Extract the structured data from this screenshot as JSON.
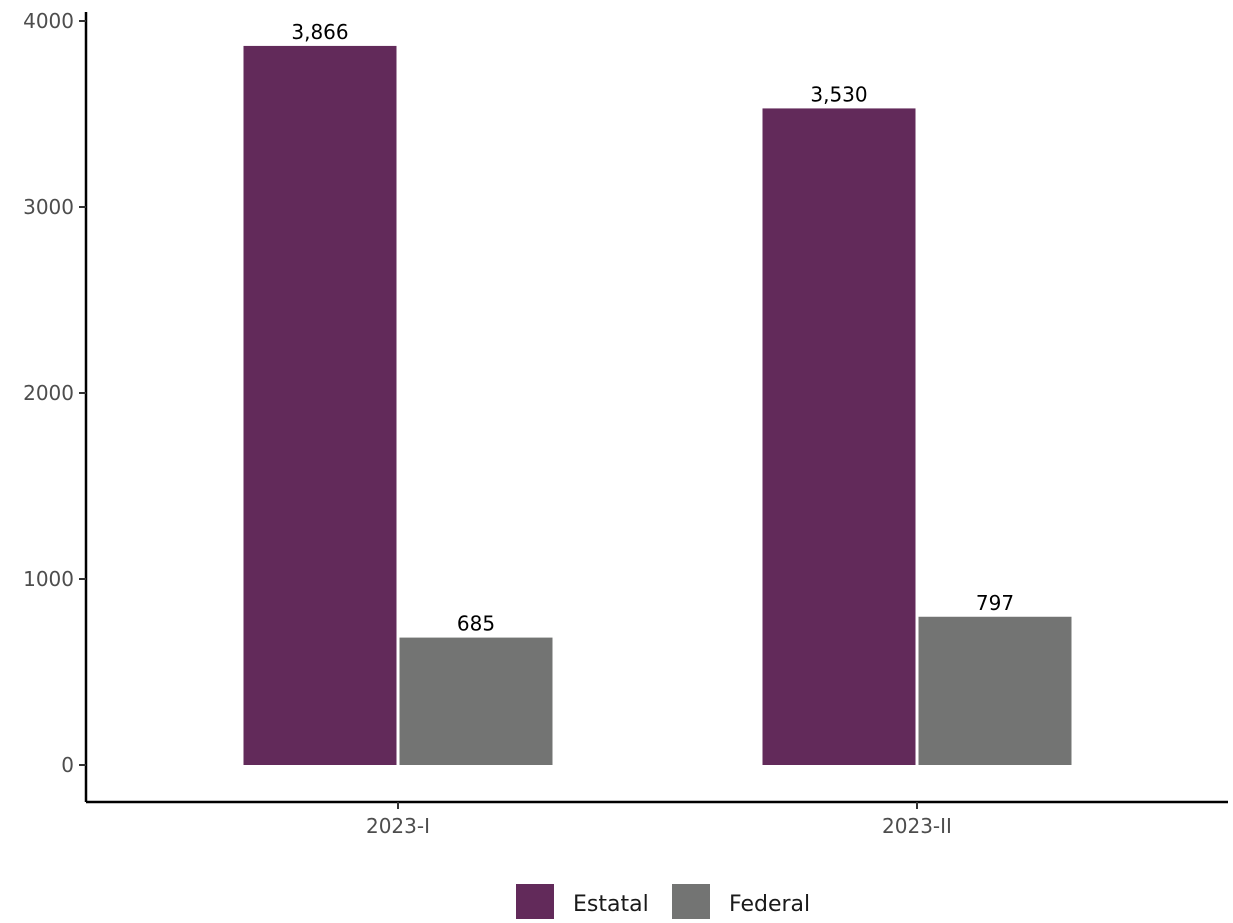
{
  "chart_data": {
    "type": "bar",
    "title": "",
    "xlabel": "",
    "ylabel": "",
    "categories": [
      "2023-I",
      "2023-II"
    ],
    "series": [
      {
        "name": "Estatal",
        "values": [
          3866,
          3530
        ],
        "labels": [
          "3,866",
          "3,530"
        ],
        "color": "#622a5a"
      },
      {
        "name": "Federal",
        "values": [
          685,
          797
        ],
        "labels": [
          "685",
          "797"
        ],
        "color": "#737473"
      }
    ],
    "ylim": [
      0,
      4000
    ],
    "yticks": [
      0,
      1000,
      2000,
      3000,
      4000
    ],
    "ytick_labels": [
      "0",
      "1000",
      "2000",
      "3000",
      "4000"
    ],
    "grid": false,
    "legend_position": "bottom"
  }
}
